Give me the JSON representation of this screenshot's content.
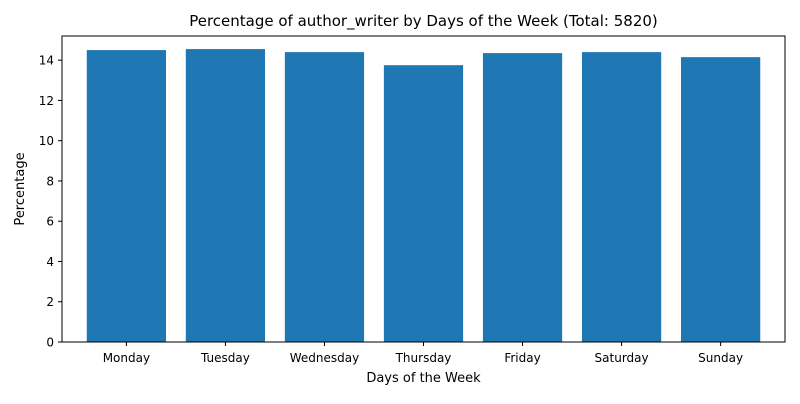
{
  "chart_data": {
    "type": "bar",
    "title": "Percentage of author_writer by Days of the Week (Total: 5820)",
    "xlabel": "Days of the Week",
    "ylabel": "Percentage",
    "categories": [
      "Monday",
      "Tuesday",
      "Wednesday",
      "Thursday",
      "Friday",
      "Saturday",
      "Sunday"
    ],
    "values": [
      14.5,
      14.55,
      14.4,
      13.75,
      14.35,
      14.4,
      14.15
    ],
    "ylim": [
      0,
      15.2
    ],
    "yticks": [
      0,
      2,
      4,
      6,
      8,
      10,
      12,
      14
    ],
    "grid": false,
    "legend": "none",
    "bar_color": "#1f77b4"
  }
}
